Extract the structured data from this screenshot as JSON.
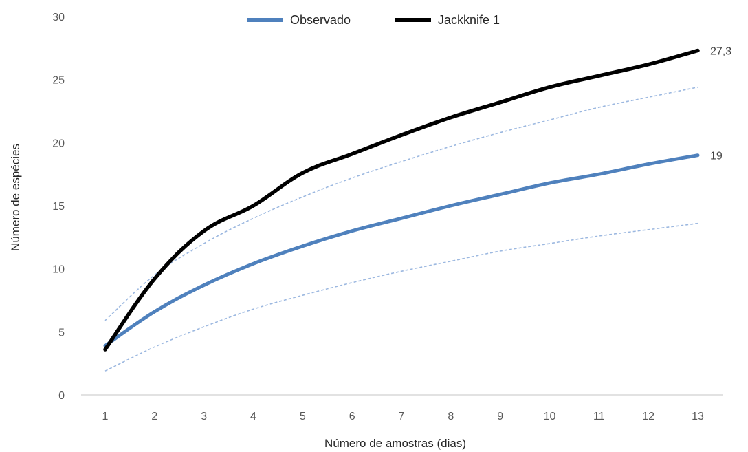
{
  "chart_data": {
    "type": "line",
    "title": "",
    "xlabel": "Número  de amostras (dias)",
    "ylabel": "Número  de espécies",
    "x": [
      1,
      2,
      3,
      4,
      5,
      6,
      7,
      8,
      9,
      10,
      11,
      12,
      13
    ],
    "x_tick_labels": [
      "1",
      "2",
      "3",
      "4",
      "5",
      "6",
      "7",
      "8",
      "9",
      "10",
      "11",
      "12",
      "13"
    ],
    "y_tick_labels": [
      "0",
      "5",
      "10",
      "15",
      "20",
      "25",
      "30"
    ],
    "ylim": [
      0,
      30
    ],
    "grid": false,
    "legend_position": "top",
    "series": [
      {
        "name": "Observado",
        "color": "#4f81bd",
        "values": [
          3.9,
          6.6,
          8.7,
          10.4,
          11.8,
          13.0,
          14.0,
          15.0,
          15.9,
          16.8,
          17.5,
          18.3,
          19.0
        ],
        "end_label": "19"
      },
      {
        "name": "Jackknife 1",
        "color": "#000000",
        "values": [
          3.6,
          9.2,
          13.0,
          15.0,
          17.6,
          19.1,
          20.6,
          22.0,
          23.2,
          24.4,
          25.3,
          26.2,
          27.3
        ],
        "end_label": "27,3"
      }
    ],
    "confidence_bounds": {
      "color": "#9cb8e0",
      "upper": [
        5.9,
        9.5,
        12.0,
        14.0,
        15.7,
        17.2,
        18.5,
        19.7,
        20.8,
        21.8,
        22.8,
        23.6,
        24.4
      ],
      "lower": [
        1.9,
        3.8,
        5.4,
        6.8,
        7.9,
        8.9,
        9.8,
        10.6,
        11.4,
        12.0,
        12.6,
        13.1,
        13.6
      ]
    }
  }
}
